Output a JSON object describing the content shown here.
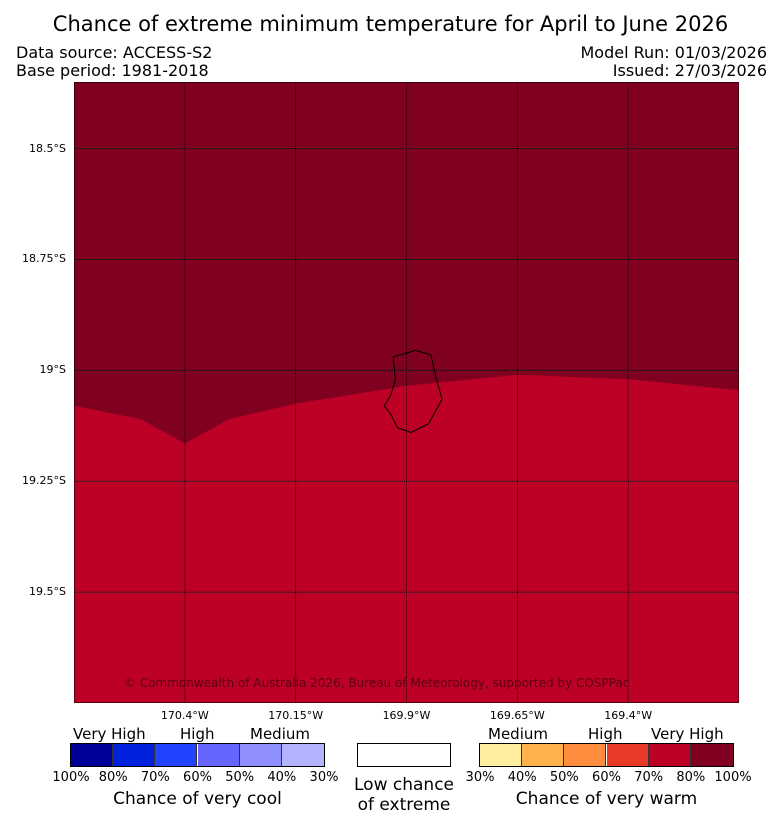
{
  "title": "Chance of extreme minimum temperature for April to June 2026",
  "data_source": "Data source: ACCESS-S2",
  "base_period": "Base period: 1981-2018",
  "model_run": "Model Run: 01/03/2026",
  "issued": "Issued: 27/03/2026",
  "copyright": "© Commonwealth of Australia 2026, Bureau of Meteorology, supported by COSPPac",
  "chart_data": {
    "type": "heatmap",
    "variable": "Chance of extreme minimum temperature",
    "period": "April to June 2026",
    "lat_ticks": [
      "18.5°S",
      "18.75°S",
      "19°S",
      "19.25°S",
      "19.5°S"
    ],
    "lon_ticks": [
      "170.4°W",
      "170.15°W",
      "169.9°W",
      "169.65°W",
      "169.4°W"
    ],
    "lat_range": [
      -19.75,
      -18.35
    ],
    "lon_range": [
      -170.65,
      -169.15
    ],
    "regions": [
      {
        "category": "Chance of very warm",
        "range": "80%-100%",
        "color": "#800020",
        "location": "north"
      },
      {
        "category": "Chance of very warm",
        "range": "70%-80%",
        "color": "#bd0026",
        "location": "south"
      }
    ],
    "boundary_points": [
      [
        -170.65,
        -19.08
      ],
      [
        -170.5,
        -19.11
      ],
      [
        -170.4,
        -19.165
      ],
      [
        -170.3,
        -19.11
      ],
      [
        -170.15,
        -19.075
      ],
      [
        -169.9,
        -19.035
      ],
      [
        -169.65,
        -19.01
      ],
      [
        -169.4,
        -19.02
      ],
      [
        -169.15,
        -19.045
      ]
    ],
    "island_outline": [
      [
        -169.93,
        -18.97
      ],
      [
        -169.88,
        -18.955
      ],
      [
        -169.845,
        -18.965
      ],
      [
        -169.835,
        -19.01
      ],
      [
        -169.82,
        -19.065
      ],
      [
        -169.85,
        -19.12
      ],
      [
        -169.89,
        -19.14
      ],
      [
        -169.92,
        -19.13
      ],
      [
        -169.935,
        -19.1
      ],
      [
        -169.95,
        -19.08
      ],
      [
        -169.935,
        -19.055
      ],
      [
        -169.925,
        -19.02
      ],
      [
        -169.93,
        -18.97
      ]
    ],
    "legend": {
      "cool_caption": "Chance of very cool",
      "cool_tiers": [
        "Very High",
        "High",
        "Medium"
      ],
      "cool_colors": [
        "#000099",
        "#0022dd",
        "#2244ff",
        "#6666ff",
        "#8f8fff",
        "#b3b3ff"
      ],
      "cool_labels": [
        "100%",
        "80%",
        "70%",
        "60%",
        "50%",
        "40%",
        "30%"
      ],
      "neutral_caption_line1": "Low chance",
      "neutral_caption_line2": "of extreme",
      "warm_caption": "Chance of very warm",
      "warm_tiers": [
        "Medium",
        "High",
        "Very High"
      ],
      "warm_colors": [
        "#ffeda0",
        "#feb24c",
        "#fd8d3c",
        "#e83a26",
        "#bd0026",
        "#800020"
      ],
      "warm_labels": [
        "30%",
        "40%",
        "50%",
        "60%",
        "70%",
        "80%",
        "100%"
      ]
    }
  }
}
